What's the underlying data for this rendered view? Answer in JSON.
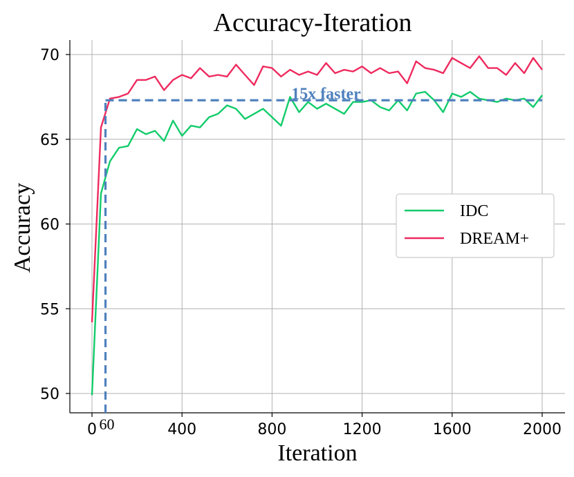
{
  "chart_data": {
    "type": "line",
    "title": "Accuracy-Iteration",
    "xlabel": "Iteration",
    "ylabel": "Accuracy",
    "xlim": [
      -100,
      2100
    ],
    "ylim": [
      49,
      71
    ],
    "xticks": [
      0,
      400,
      800,
      1200,
      1600,
      2000
    ],
    "xtick_labels": [
      "0",
      "400",
      "800",
      "1200",
      "1600",
      "2000"
    ],
    "yticks": [
      50,
      55,
      60,
      65,
      70
    ],
    "ytick_labels": [
      "50",
      "55",
      "60",
      "65",
      "70"
    ],
    "extra_xtick_label": {
      "value": 60,
      "label": "60"
    },
    "grid": true,
    "legend_position": "right",
    "annotation": {
      "text": "15x faster",
      "x": 1040,
      "y": 67.7
    },
    "reference_lines": {
      "x": 60,
      "y": 67.3,
      "color": "#4f81bd"
    },
    "colors": {
      "IDC": "#11cc6a",
      "DREAM+": "#ee2a5e",
      "reference": "#4f81bd"
    },
    "series": [
      {
        "name": "IDC",
        "color": "#11cc6a",
        "x": [
          0,
          40,
          80,
          120,
          160,
          200,
          240,
          280,
          320,
          360,
          400,
          440,
          480,
          520,
          560,
          600,
          640,
          680,
          720,
          760,
          800,
          840,
          880,
          920,
          960,
          1000,
          1040,
          1080,
          1120,
          1160,
          1200,
          1240,
          1280,
          1320,
          1360,
          1400,
          1440,
          1480,
          1520,
          1560,
          1600,
          1640,
          1680,
          1720,
          1760,
          1800,
          1840,
          1880,
          1920,
          1960,
          2000
        ],
        "y": [
          49.9,
          61.8,
          63.7,
          64.5,
          64.6,
          65.6,
          65.3,
          65.5,
          64.9,
          66.1,
          65.2,
          65.8,
          65.7,
          66.3,
          66.5,
          67.0,
          66.8,
          66.2,
          66.5,
          66.8,
          66.3,
          65.8,
          67.5,
          66.6,
          67.2,
          66.8,
          67.1,
          66.8,
          66.5,
          67.2,
          67.2,
          67.3,
          66.9,
          66.7,
          67.3,
          66.7,
          67.7,
          67.8,
          67.3,
          66.6,
          67.7,
          67.5,
          67.8,
          67.4,
          67.3,
          67.2,
          67.4,
          67.3,
          67.4,
          66.9,
          67.6
        ]
      },
      {
        "name": "DREAM+",
        "color": "#ee2a5e",
        "x": [
          0,
          40,
          80,
          120,
          160,
          200,
          240,
          280,
          320,
          360,
          400,
          440,
          480,
          520,
          560,
          600,
          640,
          680,
          720,
          760,
          800,
          840,
          880,
          920,
          960,
          1000,
          1040,
          1080,
          1120,
          1160,
          1200,
          1240,
          1280,
          1320,
          1360,
          1400,
          1440,
          1480,
          1520,
          1560,
          1600,
          1640,
          1680,
          1720,
          1760,
          1800,
          1840,
          1880,
          1920,
          1960,
          2000
        ],
        "y": [
          54.2,
          65.7,
          67.4,
          67.5,
          67.7,
          68.5,
          68.5,
          68.7,
          67.9,
          68.5,
          68.8,
          68.6,
          69.2,
          68.7,
          68.8,
          68.7,
          69.4,
          68.8,
          68.2,
          69.3,
          69.2,
          68.7,
          69.1,
          68.8,
          69.0,
          68.8,
          69.5,
          68.9,
          69.1,
          69.0,
          69.3,
          68.9,
          69.2,
          68.9,
          69.0,
          68.3,
          69.6,
          69.2,
          69.1,
          68.9,
          69.8,
          69.5,
          69.2,
          69.9,
          69.2,
          69.2,
          68.8,
          69.5,
          68.9,
          69.8,
          69.1
        ]
      }
    ]
  }
}
